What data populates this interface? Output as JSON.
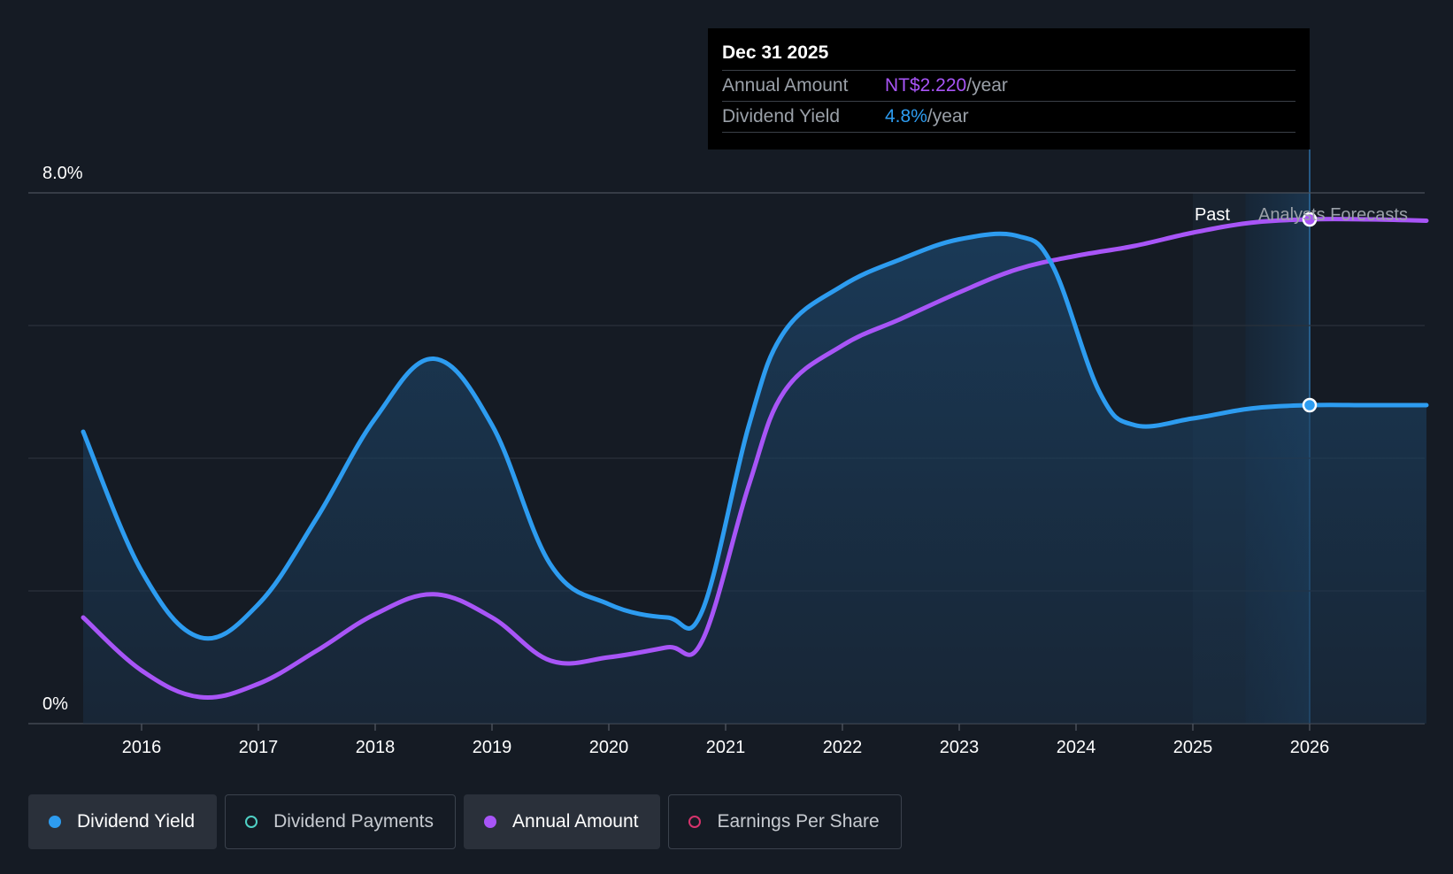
{
  "chart_data": {
    "type": "line",
    "x_ticks": [
      "2016",
      "2017",
      "2018",
      "2019",
      "2020",
      "2021",
      "2022",
      "2023",
      "2024",
      "2025",
      "2026"
    ],
    "y_tick_labels": [
      "8.0%",
      "0%"
    ],
    "ylim": [
      0,
      8
    ],
    "past_label": "Past",
    "forecast_label": "Analysts Forecasts",
    "series": [
      {
        "name": "Dividend Yield",
        "color": "#2d9cf0",
        "points": [
          [
            2015.5,
            4.4
          ],
          [
            2016.0,
            2.3
          ],
          [
            2016.5,
            1.3
          ],
          [
            2017.0,
            1.8
          ],
          [
            2017.5,
            3.1
          ],
          [
            2018.0,
            4.6
          ],
          [
            2018.5,
            5.5
          ],
          [
            2019.0,
            4.5
          ],
          [
            2019.5,
            2.4
          ],
          [
            2020.0,
            1.8
          ],
          [
            2020.5,
            1.6
          ],
          [
            2020.8,
            1.7
          ],
          [
            2021.2,
            4.5
          ],
          [
            2021.5,
            5.9
          ],
          [
            2022.0,
            6.6
          ],
          [
            2022.5,
            7.0
          ],
          [
            2023.0,
            7.3
          ],
          [
            2023.5,
            7.35
          ],
          [
            2023.8,
            6.9
          ],
          [
            2024.2,
            5.0
          ],
          [
            2024.5,
            4.5
          ],
          [
            2025.0,
            4.6
          ],
          [
            2025.5,
            4.75
          ],
          [
            2026.0,
            4.8
          ],
          [
            2026.5,
            4.8
          ],
          [
            2027.0,
            4.8
          ]
        ]
      },
      {
        "name": "Annual Amount",
        "color": "#a855f7",
        "points": [
          [
            2015.5,
            1.6
          ],
          [
            2016.0,
            0.8
          ],
          [
            2016.5,
            0.4
          ],
          [
            2017.0,
            0.6
          ],
          [
            2017.5,
            1.1
          ],
          [
            2018.0,
            1.65
          ],
          [
            2018.5,
            1.95
          ],
          [
            2019.0,
            1.6
          ],
          [
            2019.5,
            0.95
          ],
          [
            2020.0,
            1.0
          ],
          [
            2020.5,
            1.15
          ],
          [
            2020.8,
            1.25
          ],
          [
            2021.2,
            3.6
          ],
          [
            2021.5,
            5.0
          ],
          [
            2022.0,
            5.7
          ],
          [
            2022.5,
            6.1
          ],
          [
            2023.0,
            6.5
          ],
          [
            2023.5,
            6.85
          ],
          [
            2024.0,
            7.05
          ],
          [
            2024.5,
            7.2
          ],
          [
            2025.0,
            7.4
          ],
          [
            2025.5,
            7.55
          ],
          [
            2026.0,
            7.6
          ],
          [
            2026.5,
            7.6
          ],
          [
            2027.0,
            7.58
          ]
        ]
      }
    ],
    "highlight_x": 2026.0,
    "forecast_start_x": 2025.45,
    "past_band_start_x": 2025.0
  },
  "tooltip": {
    "date": "Dec 31 2025",
    "rows": [
      {
        "key": "Annual Amount",
        "value": "NT$2.220",
        "unit": "/year"
      },
      {
        "key": "Dividend Yield",
        "value": "4.8%",
        "unit": "/year"
      }
    ]
  },
  "legend": [
    {
      "label": "Dividend Yield",
      "color": "#2d9cf0",
      "active": true,
      "filled": true
    },
    {
      "label": "Dividend Payments",
      "color": "#4fd1c5",
      "active": false,
      "filled": false
    },
    {
      "label": "Annual Amount",
      "color": "#a855f7",
      "active": true,
      "filled": true
    },
    {
      "label": "Earnings Per Share",
      "color": "#d6336c",
      "active": false,
      "filled": false
    }
  ]
}
